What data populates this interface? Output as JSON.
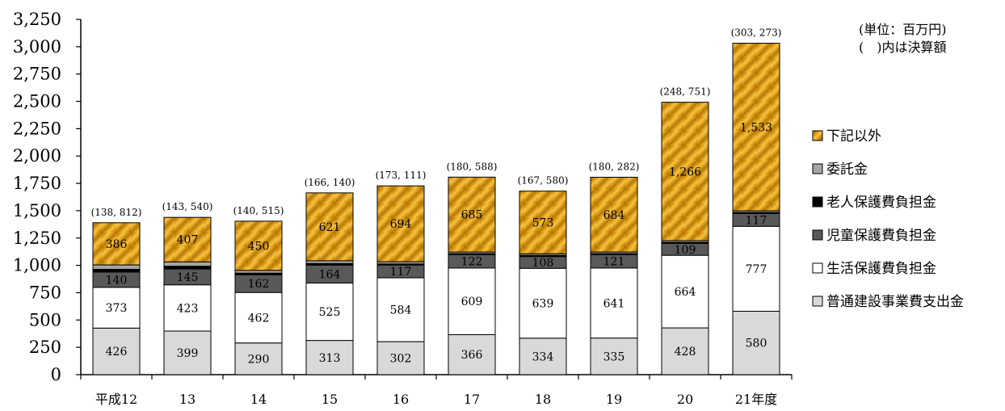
{
  "chart_data": {
    "type": "bar",
    "stacked": true,
    "categories": [
      "平成12",
      "13",
      "14",
      "15",
      "16",
      "17",
      "18",
      "19",
      "20",
      "21年度"
    ],
    "totals_labels": [
      "(138, 812)",
      "(143, 540)",
      "(140, 515)",
      "(166, 140)",
      "(173, 111)",
      "(180, 588)",
      "(167, 580)",
      "(180, 282)",
      "(248, 751)",
      "(303, 273)"
    ],
    "ylim": [
      0,
      3250
    ],
    "yticks": [
      0,
      250,
      500,
      750,
      1000,
      1250,
      1500,
      1750,
      2000,
      2250,
      2500,
      2750,
      3000,
      3250
    ],
    "ytick_labels": [
      "0",
      "250",
      "500",
      "750",
      "1,000",
      "1,250",
      "1,500",
      "1,750",
      "2,000",
      "2,250",
      "2,500",
      "2,750",
      "3,000",
      "3,250"
    ],
    "series": [
      {
        "name": "普通建設事業費支出金",
        "values": [
          426,
          399,
          290,
          313,
          302,
          366,
          334,
          335,
          428,
          580
        ],
        "labels": [
          "426",
          "399",
          "290",
          "313",
          "302",
          "366",
          "334",
          "335",
          "428",
          "580"
        ],
        "color": "#d9d9d9"
      },
      {
        "name": "生活保護費負担金",
        "values": [
          373,
          423,
          462,
          525,
          584,
          609,
          639,
          641,
          664,
          777
        ],
        "labels": [
          "373",
          "423",
          "462",
          "525",
          "584",
          "609",
          "639",
          "641",
          "664",
          "777"
        ],
        "color": "#ffffff"
      },
      {
        "name": "児童保護費負担金",
        "values": [
          140,
          145,
          162,
          164,
          117,
          122,
          108,
          121,
          109,
          117
        ],
        "labels": [
          "140",
          "145",
          "162",
          "164",
          "117",
          "122",
          "108",
          "121",
          "109",
          "117"
        ],
        "color": "#595959"
      },
      {
        "name": "老人保護費負担金",
        "values": [
          25,
          25,
          15,
          15,
          10,
          10,
          10,
          10,
          10,
          10
        ],
        "labels": [],
        "color": "#000000"
      },
      {
        "name": "委託金",
        "values": [
          40,
          40,
          25,
          25,
          20,
          15,
          15,
          15,
          15,
          15
        ],
        "labels": [],
        "color": "#a6a6a6"
      },
      {
        "name": "下記以外",
        "values": [
          386,
          407,
          450,
          621,
          694,
          685,
          573,
          684,
          1266,
          1533
        ],
        "labels": [
          "386",
          "407",
          "450",
          "621",
          "694",
          "685",
          "573",
          "684",
          "1,266",
          "1,533"
        ],
        "color": "#d4900a"
      }
    ],
    "legend_order": [
      "下記以外",
      "委託金",
      "老人保護費負担金",
      "児童保護費負担金",
      "生活保護費負担金",
      "普通建設事業費支出金"
    ],
    "legend_position": "right",
    "grid": false
  },
  "unit_note": {
    "line1": "(単位：百万円)",
    "line2": "(　)内は決算額"
  }
}
